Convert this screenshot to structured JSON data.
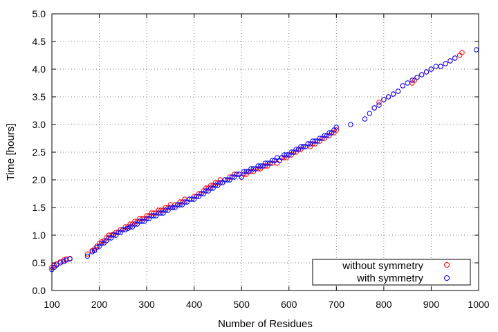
{
  "chart_data": {
    "type": "scatter",
    "title": "",
    "xlabel": "Number of Residues",
    "ylabel": "Time [hours]",
    "xlim": [
      100,
      1000
    ],
    "ylim": [
      0,
      5
    ],
    "xticks": [
      "100",
      "200",
      "300",
      "400",
      "500",
      "600",
      "700",
      "800",
      "900",
      "1000"
    ],
    "yticks": [
      "0.0",
      "0.5",
      "1.0",
      "1.5",
      "2.0",
      "2.5",
      "3.0",
      "3.5",
      "4.0",
      "4.5",
      "5.0"
    ],
    "grid": true,
    "legend": "bottom-right",
    "series": [
      {
        "name": "without symmetry",
        "color": "#ff0000",
        "marker": "open-circle",
        "x": [
          100,
          105,
          110,
          118,
          125,
          130,
          138,
          175,
          185,
          190,
          195,
          200,
          205,
          210,
          215,
          220,
          225,
          230,
          235,
          240,
          245,
          250,
          255,
          260,
          265,
          270,
          275,
          280,
          285,
          290,
          295,
          300,
          305,
          310,
          315,
          320,
          325,
          330,
          335,
          340,
          345,
          350,
          355,
          360,
          365,
          370,
          375,
          380,
          385,
          390,
          395,
          400,
          405,
          410,
          415,
          420,
          425,
          430,
          435,
          440,
          445,
          450,
          455,
          460,
          465,
          470,
          475,
          480,
          485,
          490,
          495,
          500,
          505,
          510,
          515,
          520,
          525,
          530,
          535,
          540,
          545,
          550,
          555,
          560,
          565,
          570,
          575,
          580,
          585,
          590,
          595,
          600,
          605,
          610,
          615,
          620,
          625,
          630,
          635,
          640,
          645,
          650,
          655,
          660,
          665,
          670,
          675,
          680,
          685,
          690,
          695,
          700,
          780,
          790,
          800,
          810,
          820,
          830,
          840,
          860,
          865,
          870,
          880,
          890,
          900,
          920,
          930,
          940,
          950,
          960,
          965
        ],
        "y": [
          0.42,
          0.45,
          0.48,
          0.52,
          0.55,
          0.57,
          0.58,
          0.66,
          0.72,
          0.75,
          0.8,
          0.85,
          0.88,
          0.9,
          0.95,
          1.0,
          1.0,
          1.02,
          1.05,
          1.05,
          1.1,
          1.1,
          1.15,
          1.15,
          1.2,
          1.2,
          1.25,
          1.25,
          1.3,
          1.3,
          1.3,
          1.35,
          1.35,
          1.4,
          1.4,
          1.4,
          1.45,
          1.45,
          1.45,
          1.5,
          1.5,
          1.55,
          1.5,
          1.55,
          1.55,
          1.6,
          1.6,
          1.65,
          1.6,
          1.65,
          1.65,
          1.7,
          1.7,
          1.75,
          1.75,
          1.8,
          1.85,
          1.85,
          1.9,
          1.9,
          1.95,
          1.95,
          2.0,
          1.95,
          2.0,
          2.0,
          2.05,
          2.05,
          2.1,
          2.1,
          2.1,
          2.05,
          2.1,
          2.1,
          2.15,
          2.15,
          2.15,
          2.2,
          2.2,
          2.2,
          2.25,
          2.25,
          2.25,
          2.3,
          2.3,
          2.35,
          2.3,
          2.35,
          2.4,
          2.4,
          2.4,
          2.45,
          2.45,
          2.5,
          2.5,
          2.55,
          2.55,
          2.6,
          2.6,
          2.65,
          2.6,
          2.65,
          2.65,
          2.7,
          2.7,
          2.75,
          2.75,
          2.8,
          2.8,
          2.85,
          2.85,
          2.9,
          3.3,
          3.4,
          3.45,
          3.5,
          3.55,
          3.6,
          3.7,
          3.75,
          3.8,
          3.85,
          3.9,
          3.95,
          4.0,
          4.05,
          4.1,
          4.15,
          4.2,
          4.25,
          4.3
        ]
      },
      {
        "name": "with symmetry",
        "color": "#0000ff",
        "marker": "open-circle",
        "x": [
          100,
          105,
          110,
          118,
          125,
          130,
          138,
          175,
          185,
          190,
          195,
          200,
          205,
          210,
          215,
          220,
          225,
          230,
          235,
          240,
          245,
          250,
          255,
          260,
          265,
          270,
          275,
          280,
          285,
          290,
          295,
          300,
          305,
          310,
          315,
          320,
          325,
          330,
          335,
          340,
          345,
          350,
          355,
          360,
          365,
          370,
          375,
          380,
          385,
          390,
          395,
          400,
          405,
          410,
          415,
          420,
          425,
          430,
          435,
          440,
          445,
          450,
          455,
          460,
          465,
          470,
          475,
          480,
          485,
          490,
          495,
          500,
          505,
          510,
          515,
          520,
          525,
          530,
          535,
          540,
          545,
          550,
          555,
          560,
          565,
          570,
          575,
          580,
          585,
          590,
          595,
          600,
          605,
          610,
          615,
          620,
          625,
          630,
          635,
          640,
          645,
          650,
          655,
          660,
          665,
          670,
          675,
          680,
          685,
          690,
          695,
          700,
          730,
          760,
          770,
          780,
          790,
          800,
          810,
          820,
          830,
          840,
          850,
          860,
          870,
          880,
          890,
          900,
          910,
          920,
          930,
          940,
          950,
          995
        ],
        "y": [
          0.38,
          0.42,
          0.46,
          0.5,
          0.52,
          0.55,
          0.57,
          0.62,
          0.7,
          0.72,
          0.78,
          0.8,
          0.85,
          0.86,
          0.9,
          0.95,
          0.95,
          1.0,
          1.0,
          1.05,
          1.05,
          1.1,
          1.1,
          1.12,
          1.15,
          1.15,
          1.2,
          1.2,
          1.25,
          1.25,
          1.25,
          1.3,
          1.3,
          1.35,
          1.35,
          1.35,
          1.4,
          1.4,
          1.4,
          1.45,
          1.45,
          1.5,
          1.5,
          1.5,
          1.55,
          1.55,
          1.55,
          1.6,
          1.6,
          1.65,
          1.65,
          1.65,
          1.7,
          1.7,
          1.75,
          1.75,
          1.8,
          1.8,
          1.85,
          1.85,
          1.9,
          1.9,
          1.95,
          1.95,
          2.0,
          2.0,
          2.0,
          2.05,
          2.05,
          2.1,
          2.1,
          2.05,
          2.15,
          2.15,
          2.15,
          2.2,
          2.2,
          2.2,
          2.25,
          2.25,
          2.25,
          2.3,
          2.3,
          2.3,
          2.35,
          2.35,
          2.4,
          2.35,
          2.4,
          2.45,
          2.45,
          2.45,
          2.5,
          2.5,
          2.55,
          2.55,
          2.6,
          2.6,
          2.6,
          2.65,
          2.65,
          2.7,
          2.7,
          2.7,
          2.75,
          2.75,
          2.8,
          2.8,
          2.85,
          2.85,
          2.9,
          2.95,
          3.0,
          3.1,
          3.2,
          3.3,
          3.35,
          3.45,
          3.5,
          3.55,
          3.6,
          3.7,
          3.75,
          3.8,
          3.85,
          3.9,
          3.95,
          4.0,
          4.05,
          4.05,
          4.1,
          4.15,
          4.2,
          4.35
        ]
      }
    ]
  }
}
